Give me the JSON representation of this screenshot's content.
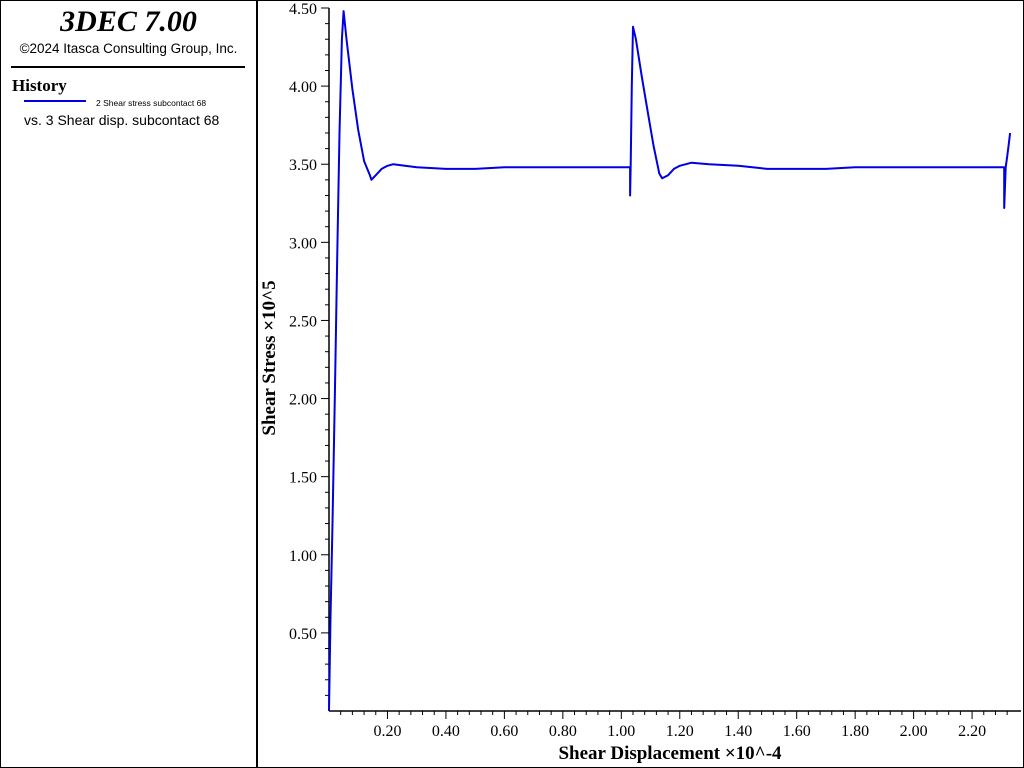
{
  "app": {
    "title": "3DEC 7.00",
    "copyright": "©2024 Itasca Consulting Group, Inc."
  },
  "legend": {
    "heading": "History",
    "series_label": "2 Shear stress subcontact 68",
    "vs_label": "vs. 3 Shear disp. subcontact 68",
    "line_color": "#0000e0"
  },
  "chart_data": {
    "type": "line",
    "xlabel": "Shear Displacement ×10^-4",
    "ylabel": "Shear Stress ×10^5",
    "xlim": [
      0.0,
      2.34
    ],
    "ylim": [
      0.0,
      4.5
    ],
    "x_ticks": [
      "0.20",
      "0.40",
      "0.60",
      "0.80",
      "1.00",
      "1.20",
      "1.40",
      "1.60",
      "1.80",
      "2.00",
      "2.20"
    ],
    "y_ticks": [
      "0.50",
      "1.00",
      "1.50",
      "2.00",
      "2.50",
      "3.00",
      "3.50",
      "4.00",
      "4.50"
    ],
    "grid": false,
    "series": [
      {
        "color": "#0000e0",
        "x": [
          0.0,
          0.005,
          0.012,
          0.02,
          0.028,
          0.036,
          0.044,
          0.05,
          0.06,
          0.08,
          0.1,
          0.12,
          0.14,
          0.145,
          0.16,
          0.18,
          0.2,
          0.22,
          0.26,
          0.3,
          0.4,
          0.5,
          0.6,
          0.7,
          0.8,
          0.9,
          1.0,
          1.03,
          1.03,
          1.032,
          1.036,
          1.04,
          1.05,
          1.07,
          1.09,
          1.11,
          1.13,
          1.14,
          1.16,
          1.18,
          1.2,
          1.24,
          1.3,
          1.4,
          1.5,
          1.6,
          1.7,
          1.8,
          1.9,
          2.0,
          2.1,
          2.2,
          2.31,
          2.31,
          2.315,
          2.32,
          2.325,
          2.33
        ],
        "y": [
          0.0,
          0.6,
          1.2,
          2.0,
          2.9,
          3.7,
          4.3,
          4.48,
          4.3,
          3.98,
          3.72,
          3.52,
          3.43,
          3.4,
          3.43,
          3.47,
          3.49,
          3.5,
          3.49,
          3.48,
          3.47,
          3.47,
          3.48,
          3.48,
          3.48,
          3.48,
          3.48,
          3.48,
          3.3,
          3.5,
          4.0,
          4.38,
          4.3,
          4.06,
          3.84,
          3.62,
          3.44,
          3.41,
          3.43,
          3.47,
          3.49,
          3.51,
          3.5,
          3.49,
          3.47,
          3.47,
          3.47,
          3.48,
          3.48,
          3.48,
          3.48,
          3.48,
          3.48,
          3.22,
          3.48,
          3.55,
          3.62,
          3.7
        ]
      }
    ]
  }
}
